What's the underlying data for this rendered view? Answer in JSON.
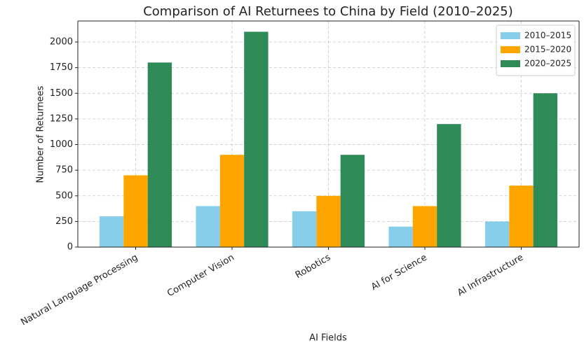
{
  "chart_data": {
    "type": "bar",
    "title": "Comparison of AI Returnees to China by Field (2010–2025)",
    "x_label": "AI Fields",
    "y_label": "Number of Returnees",
    "categories": [
      "Natural Language Processing",
      "Computer Vision",
      "Robotics",
      "AI for Science",
      "AI Infrastructure"
    ],
    "series": [
      {
        "name": "2010–2015",
        "color": "#87ceeb",
        "values": [
          300,
          400,
          350,
          200,
          250
        ]
      },
      {
        "name": "2015–2020",
        "color": "#ffa500",
        "values": [
          700,
          900,
          500,
          400,
          600
        ]
      },
      {
        "name": "2020–2025",
        "color": "#2e8b57",
        "values": [
          1800,
          2100,
          900,
          1200,
          1500
        ]
      }
    ],
    "ylim": [
      0,
      2205
    ],
    "yticks": [
      0,
      250,
      500,
      750,
      1000,
      1250,
      1500,
      1750,
      2000
    ],
    "grid": true,
    "legend": "upper right"
  }
}
